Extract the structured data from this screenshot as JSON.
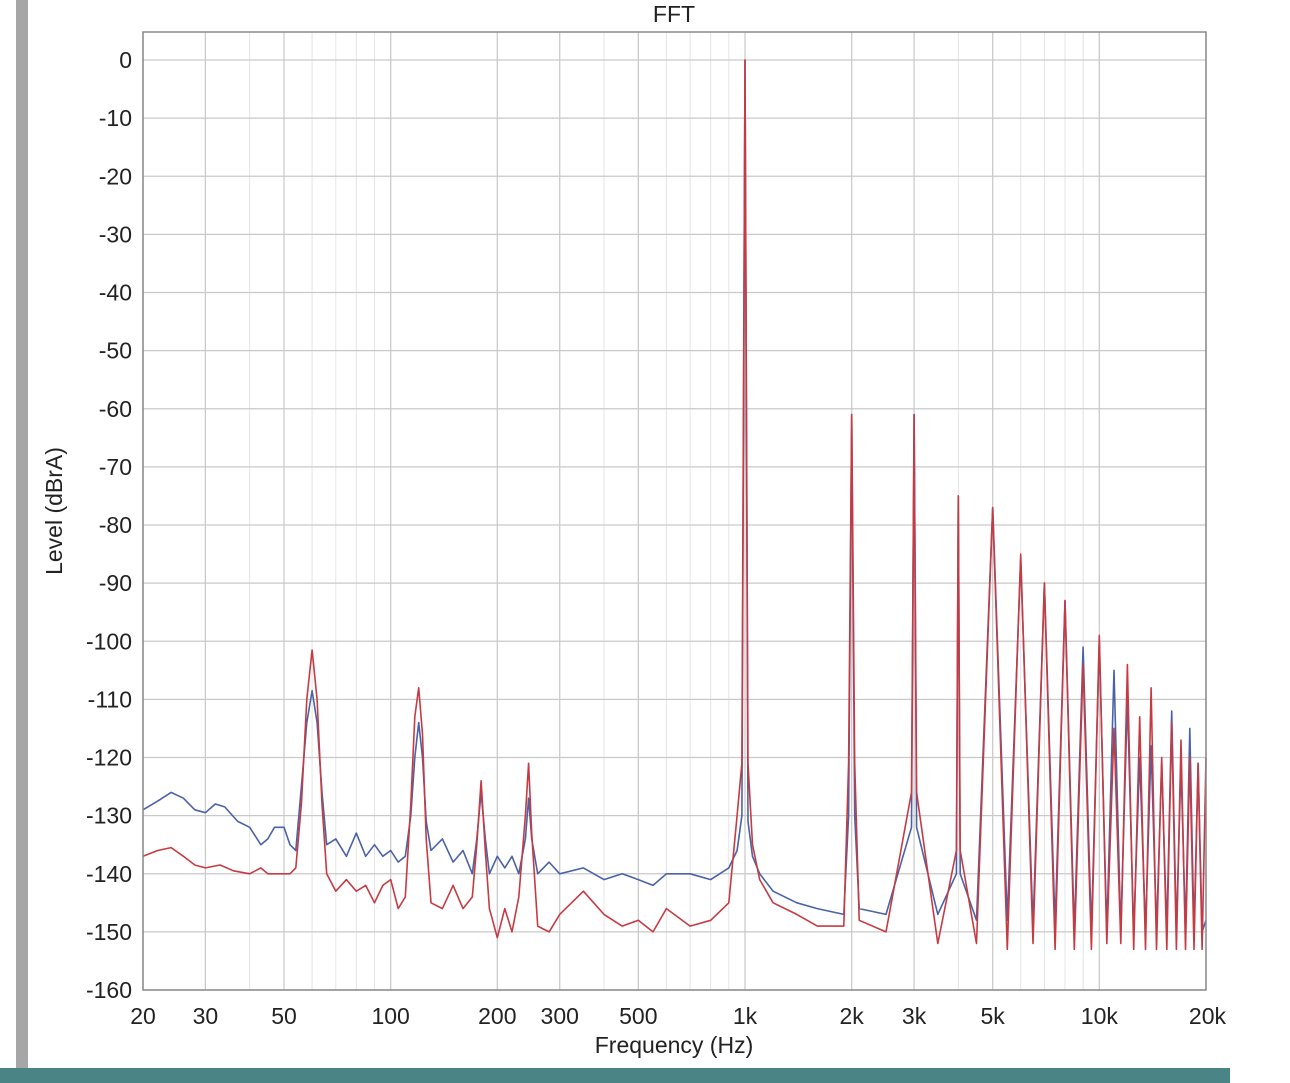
{
  "chart_data": {
    "type": "line",
    "title": "FFT",
    "xlabel": "Frequency (Hz)",
    "ylabel": "Level (dBrA)",
    "xscale": "log",
    "xlim": [
      20,
      20000
    ],
    "ylim": [
      -160,
      5
    ],
    "grid": true,
    "x_ticks": [
      {
        "value": 20,
        "label": "20"
      },
      {
        "value": 30,
        "label": "30"
      },
      {
        "value": 50,
        "label": "50"
      },
      {
        "value": 100,
        "label": "100"
      },
      {
        "value": 200,
        "label": "200"
      },
      {
        "value": 300,
        "label": "300"
      },
      {
        "value": 500,
        "label": "500"
      },
      {
        "value": 1000,
        "label": "1k"
      },
      {
        "value": 2000,
        "label": "2k"
      },
      {
        "value": 3000,
        "label": "3k"
      },
      {
        "value": 5000,
        "label": "5k"
      },
      {
        "value": 10000,
        "label": "10k"
      },
      {
        "value": 20000,
        "label": "20k"
      }
    ],
    "y_ticks": [
      0,
      -10,
      -20,
      -30,
      -40,
      -50,
      -60,
      -70,
      -80,
      -90,
      -100,
      -110,
      -120,
      -130,
      -140,
      -150,
      -160
    ],
    "series": [
      {
        "color": "#4a63a8",
        "points": [
          [
            20,
            -129
          ],
          [
            22,
            -127.5
          ],
          [
            24,
            -126
          ],
          [
            26,
            -127
          ],
          [
            28,
            -129
          ],
          [
            30,
            -129.5
          ],
          [
            32,
            -128
          ],
          [
            34,
            -128.5
          ],
          [
            37,
            -131
          ],
          [
            40,
            -132
          ],
          [
            43,
            -135
          ],
          [
            45,
            -134
          ],
          [
            47,
            -132
          ],
          [
            50,
            -132
          ],
          [
            52,
            -135
          ],
          [
            54,
            -136
          ],
          [
            56,
            -125
          ],
          [
            58,
            -114
          ],
          [
            60,
            -108.5
          ],
          [
            62,
            -114
          ],
          [
            64,
            -126
          ],
          [
            66,
            -135
          ],
          [
            70,
            -134
          ],
          [
            75,
            -137
          ],
          [
            80,
            -133
          ],
          [
            85,
            -137
          ],
          [
            90,
            -135
          ],
          [
            95,
            -137
          ],
          [
            100,
            -136
          ],
          [
            105,
            -138
          ],
          [
            110,
            -137
          ],
          [
            114,
            -130
          ],
          [
            117,
            -120
          ],
          [
            120,
            -114
          ],
          [
            123,
            -120
          ],
          [
            126,
            -131
          ],
          [
            130,
            -136
          ],
          [
            140,
            -134
          ],
          [
            150,
            -138
          ],
          [
            160,
            -136
          ],
          [
            170,
            -140
          ],
          [
            175,
            -134
          ],
          [
            180,
            -126
          ],
          [
            185,
            -134
          ],
          [
            190,
            -140
          ],
          [
            200,
            -137
          ],
          [
            210,
            -139
          ],
          [
            220,
            -137
          ],
          [
            230,
            -140
          ],
          [
            240,
            -134
          ],
          [
            245,
            -127
          ],
          [
            250,
            -134
          ],
          [
            260,
            -140
          ],
          [
            280,
            -138
          ],
          [
            300,
            -140
          ],
          [
            350,
            -139
          ],
          [
            400,
            -141
          ],
          [
            450,
            -140
          ],
          [
            500,
            -141
          ],
          [
            550,
            -142
          ],
          [
            600,
            -140
          ],
          [
            700,
            -140
          ],
          [
            800,
            -141
          ],
          [
            900,
            -139
          ],
          [
            950,
            -136
          ],
          [
            980,
            -130
          ],
          [
            1000,
            0
          ],
          [
            1020,
            -131
          ],
          [
            1050,
            -137
          ],
          [
            1100,
            -140
          ],
          [
            1200,
            -143
          ],
          [
            1400,
            -145
          ],
          [
            1600,
            -146
          ],
          [
            1900,
            -147
          ],
          [
            1960,
            -130
          ],
          [
            2000,
            -61
          ],
          [
            2040,
            -130
          ],
          [
            2100,
            -146
          ],
          [
            2500,
            -147
          ],
          [
            2950,
            -132
          ],
          [
            3000,
            -61
          ],
          [
            3050,
            -132
          ],
          [
            3500,
            -147
          ],
          [
            3950,
            -140
          ],
          [
            4000,
            -75
          ],
          [
            4050,
            -140
          ],
          [
            4500,
            -148
          ],
          [
            5000,
            -77
          ],
          [
            5500,
            -148
          ],
          [
            6000,
            -86
          ],
          [
            6500,
            -149
          ],
          [
            7000,
            -90
          ],
          [
            7500,
            -149
          ],
          [
            8000,
            -93
          ],
          [
            8500,
            -150
          ],
          [
            9000,
            -101
          ],
          [
            9500,
            -150
          ],
          [
            10000,
            -100
          ],
          [
            10500,
            -150
          ],
          [
            11000,
            -105
          ],
          [
            11500,
            -150
          ],
          [
            12000,
            -110
          ],
          [
            12500,
            -150
          ],
          [
            13000,
            -120
          ],
          [
            13500,
            -150
          ],
          [
            14000,
            -118
          ],
          [
            14500,
            -150
          ],
          [
            15000,
            -121
          ],
          [
            15500,
            -150
          ],
          [
            16000,
            -112
          ],
          [
            16500,
            -150
          ],
          [
            17000,
            -121
          ],
          [
            17500,
            -150
          ],
          [
            18000,
            -115
          ],
          [
            18500,
            -150
          ],
          [
            19000,
            -121
          ],
          [
            19500,
            -150
          ],
          [
            20000,
            -148
          ]
        ]
      },
      {
        "color": "#c63b43",
        "points": [
          [
            20,
            -137
          ],
          [
            22,
            -136
          ],
          [
            24,
            -135.5
          ],
          [
            26,
            -137
          ],
          [
            28,
            -138.5
          ],
          [
            30,
            -139
          ],
          [
            33,
            -138.5
          ],
          [
            36,
            -139.5
          ],
          [
            40,
            -140
          ],
          [
            43,
            -139
          ],
          [
            45,
            -140
          ],
          [
            48,
            -140
          ],
          [
            52,
            -140
          ],
          [
            54,
            -139
          ],
          [
            56,
            -128
          ],
          [
            58,
            -110
          ],
          [
            60,
            -101.5
          ],
          [
            62,
            -110
          ],
          [
            64,
            -128
          ],
          [
            66,
            -140
          ],
          [
            70,
            -143
          ],
          [
            75,
            -141
          ],
          [
            80,
            -143
          ],
          [
            85,
            -142
          ],
          [
            90,
            -145
          ],
          [
            95,
            -142
          ],
          [
            100,
            -141
          ],
          [
            105,
            -146
          ],
          [
            110,
            -144
          ],
          [
            114,
            -128
          ],
          [
            117,
            -113
          ],
          [
            120,
            -108
          ],
          [
            123,
            -116
          ],
          [
            126,
            -134
          ],
          [
            130,
            -145
          ],
          [
            140,
            -146
          ],
          [
            150,
            -142
          ],
          [
            160,
            -146
          ],
          [
            170,
            -144
          ],
          [
            175,
            -135
          ],
          [
            180,
            -124
          ],
          [
            185,
            -136
          ],
          [
            190,
            -146
          ],
          [
            200,
            -151
          ],
          [
            210,
            -146
          ],
          [
            220,
            -150
          ],
          [
            230,
            -144
          ],
          [
            240,
            -130
          ],
          [
            245,
            -121
          ],
          [
            250,
            -133
          ],
          [
            260,
            -149
          ],
          [
            280,
            -150
          ],
          [
            300,
            -147
          ],
          [
            350,
            -143
          ],
          [
            400,
            -147
          ],
          [
            450,
            -149
          ],
          [
            500,
            -148
          ],
          [
            550,
            -150
          ],
          [
            600,
            -146
          ],
          [
            700,
            -149
          ],
          [
            800,
            -148
          ],
          [
            900,
            -145
          ],
          [
            950,
            -130
          ],
          [
            980,
            -121
          ],
          [
            1000,
            0
          ],
          [
            1020,
            -121
          ],
          [
            1050,
            -135
          ],
          [
            1100,
            -141
          ],
          [
            1200,
            -145
          ],
          [
            1400,
            -147
          ],
          [
            1600,
            -149
          ],
          [
            1900,
            -149
          ],
          [
            1960,
            -121
          ],
          [
            2000,
            -61
          ],
          [
            2040,
            -121
          ],
          [
            2100,
            -148
          ],
          [
            2500,
            -150
          ],
          [
            2950,
            -126
          ],
          [
            3000,
            -61
          ],
          [
            3050,
            -126
          ],
          [
            3500,
            -152
          ],
          [
            3950,
            -136
          ],
          [
            4000,
            -75
          ],
          [
            4050,
            -136
          ],
          [
            4500,
            -152
          ],
          [
            5000,
            -77
          ],
          [
            5500,
            -153
          ],
          [
            6000,
            -85
          ],
          [
            6500,
            -152
          ],
          [
            7000,
            -90
          ],
          [
            7500,
            -153
          ],
          [
            8000,
            -93
          ],
          [
            8500,
            -153
          ],
          [
            9000,
            -104
          ],
          [
            9500,
            -153
          ],
          [
            10000,
            -99
          ],
          [
            10500,
            -152
          ],
          [
            11000,
            -115
          ],
          [
            11500,
            -152
          ],
          [
            12000,
            -104
          ],
          [
            12500,
            -153
          ],
          [
            13000,
            -113
          ],
          [
            13500,
            -153
          ],
          [
            14000,
            -108
          ],
          [
            14500,
            -153
          ],
          [
            15000,
            -120
          ],
          [
            15500,
            -153
          ],
          [
            16000,
            -114
          ],
          [
            16500,
            -153
          ],
          [
            17000,
            -117
          ],
          [
            17500,
            -153
          ],
          [
            18000,
            -120
          ],
          [
            18500,
            -153
          ],
          [
            19000,
            -121
          ],
          [
            19500,
            -153
          ],
          [
            20000,
            -120
          ]
        ]
      }
    ]
  }
}
